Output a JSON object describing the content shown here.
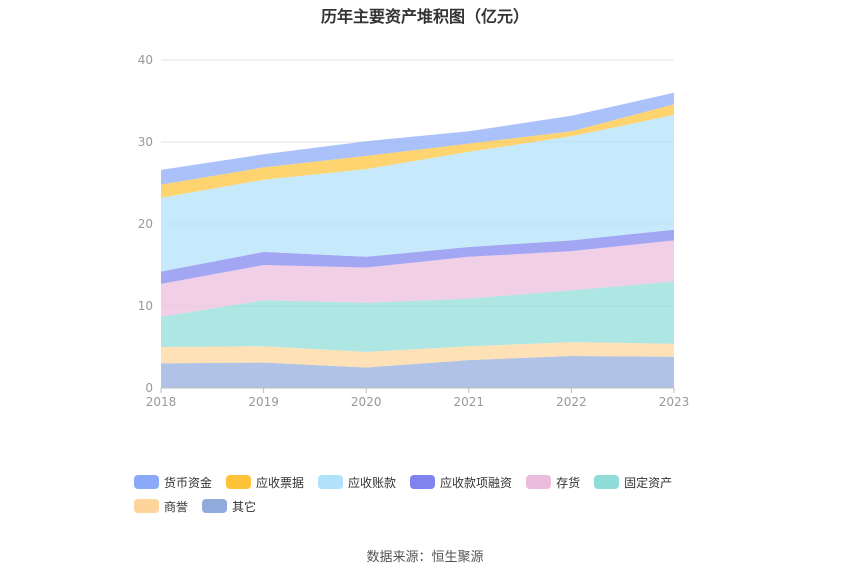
{
  "title": "历年主要资产堆积图（亿元）",
  "source": "数据来源：恒生聚源",
  "chart_data": {
    "type": "area",
    "stacked": true,
    "title": "历年主要资产堆积图（亿元）",
    "categories": [
      "2018",
      "2019",
      "2020",
      "2021",
      "2022",
      "2023"
    ],
    "ylim": [
      0,
      40
    ],
    "yticks": [
      0,
      10,
      20,
      30,
      40
    ],
    "grid": true,
    "legend_position": "bottom",
    "series": [
      {
        "name": "其它",
        "color": "#91aadc",
        "values": [
          3.0,
          3.1,
          2.5,
          3.4,
          3.9,
          3.8
        ]
      },
      {
        "name": "商誉",
        "color": "#fdd59a",
        "values": [
          2.0,
          2.0,
          1.9,
          1.7,
          1.7,
          1.6
        ]
      },
      {
        "name": "固定资产",
        "color": "#8fdcd8",
        "values": [
          3.7,
          5.6,
          6.0,
          5.8,
          6.3,
          7.6
        ]
      },
      {
        "name": "存货",
        "color": "#ebbcdc",
        "values": [
          4.0,
          4.3,
          4.3,
          5.1,
          4.8,
          5.0
        ]
      },
      {
        "name": "应收款项融资",
        "color": "#8083ee",
        "values": [
          1.5,
          1.6,
          1.3,
          1.2,
          1.3,
          1.3
        ]
      },
      {
        "name": "应收账款",
        "color": "#b0e2fb",
        "values": [
          9.0,
          8.8,
          10.7,
          11.6,
          12.7,
          14.0
        ]
      },
      {
        "name": "应收票据",
        "color": "#fdc43a",
        "values": [
          1.6,
          1.5,
          1.6,
          1.0,
          0.6,
          1.3
        ]
      },
      {
        "name": "货币资金",
        "color": "#8aa9f8",
        "values": [
          1.8,
          1.6,
          1.8,
          1.5,
          1.9,
          1.4
        ]
      }
    ]
  },
  "legend_order": [
    "货币资金",
    "应收票据",
    "应收账款",
    "应收款项融资",
    "存货",
    "固定资产",
    "商誉",
    "其它"
  ]
}
